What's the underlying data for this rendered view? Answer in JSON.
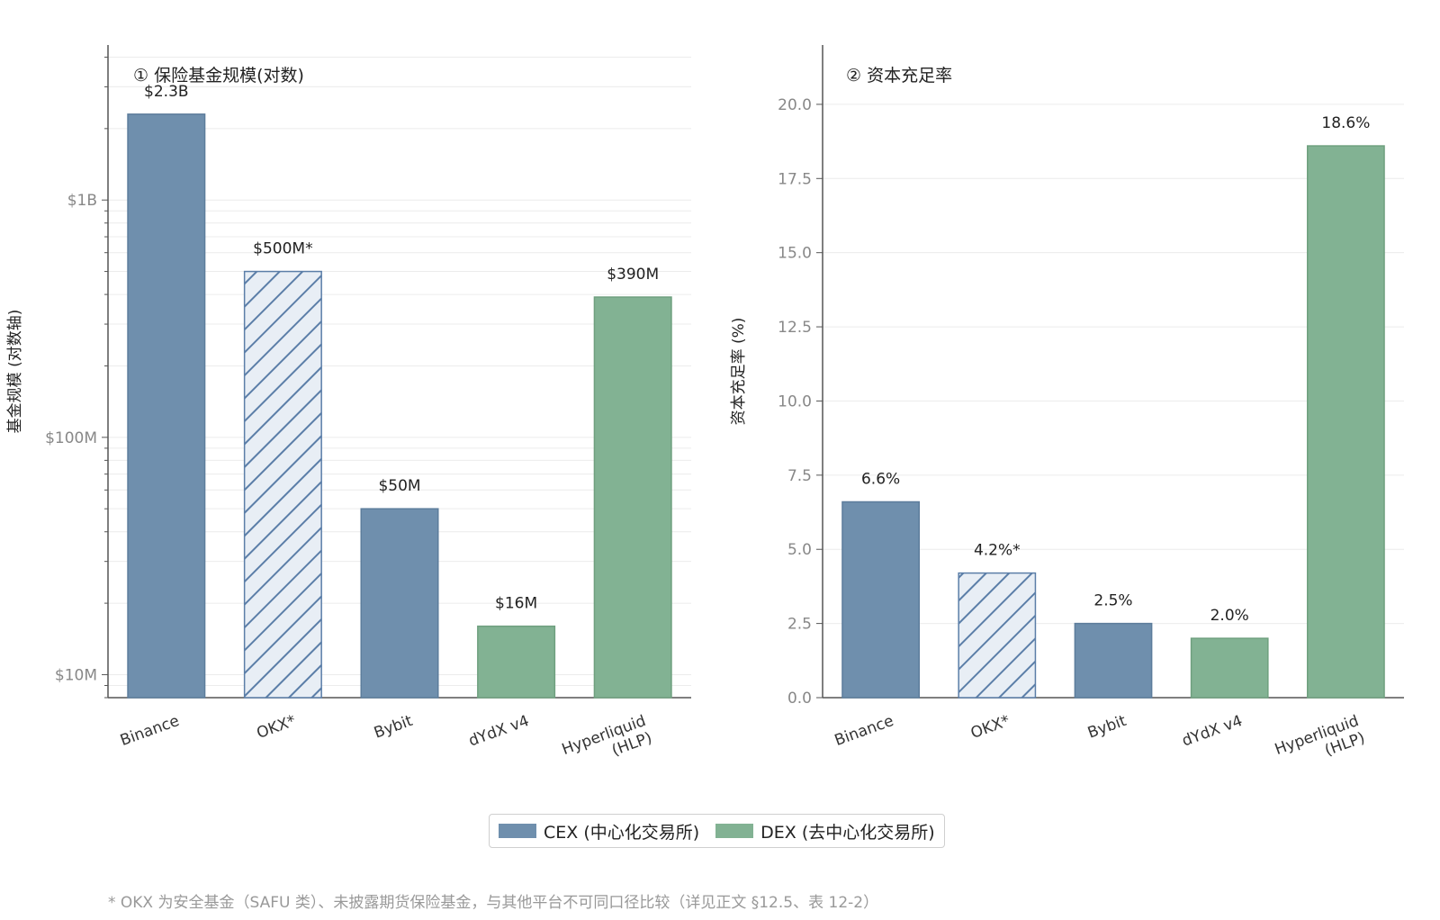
{
  "colors": {
    "cex": "#6f8fad",
    "dex": "#82b293",
    "okx_hatch": "#5b7ea8",
    "okx_fill": "#e8eef5",
    "grid": "#ececec",
    "axis": "#555555"
  },
  "chart_data": [
    {
      "type": "bar",
      "title": "① 保险基金规模(对数)",
      "xlabel": "",
      "ylabel": "基金规模 (对数轴)",
      "yscale": "log",
      "ylim": [
        8000000,
        4500000000
      ],
      "y_ticks": [
        {
          "value": 10000000,
          "label": "$10M"
        },
        {
          "value": 100000000,
          "label": "$100M"
        },
        {
          "value": 1000000000,
          "label": "$1B"
        }
      ],
      "categories": [
        "Binance",
        "OKX*",
        "Bybit",
        "dYdX v4",
        "Hyperliquid\n(HLP)"
      ],
      "values": [
        2300000000,
        500000000,
        50000000,
        16000000,
        390000000
      ],
      "value_labels": [
        "$2.3B",
        "$500M*",
        "$50M",
        "$16M",
        "$390M"
      ],
      "groups": [
        "CEX",
        "CEX-hatched",
        "CEX",
        "DEX",
        "DEX"
      ],
      "grid": true
    },
    {
      "type": "bar",
      "title": "② 资本充足率",
      "xlabel": "",
      "ylabel": "资本充足率 (%)",
      "yscale": "linear",
      "ylim": [
        0,
        22
      ],
      "y_ticks": [
        {
          "value": 0,
          "label": "0.0"
        },
        {
          "value": 2.5,
          "label": "2.5"
        },
        {
          "value": 5,
          "label": "5.0"
        },
        {
          "value": 7.5,
          "label": "7.5"
        },
        {
          "value": 10,
          "label": "10.0"
        },
        {
          "value": 12.5,
          "label": "12.5"
        },
        {
          "value": 15,
          "label": "15.0"
        },
        {
          "value": 17.5,
          "label": "17.5"
        },
        {
          "value": 20,
          "label": "20.0"
        }
      ],
      "categories": [
        "Binance",
        "OKX*",
        "Bybit",
        "dYdX v4",
        "Hyperliquid\n(HLP)"
      ],
      "values": [
        6.6,
        4.2,
        2.5,
        2.0,
        18.6
      ],
      "value_labels": [
        "6.6%",
        "4.2%*",
        "2.5%",
        "2.0%",
        "18.6%"
      ],
      "groups": [
        "CEX",
        "CEX-hatched",
        "CEX",
        "DEX",
        "DEX"
      ],
      "grid": true
    }
  ],
  "legend": {
    "placement": "bottom-center",
    "items": [
      {
        "label": "CEX (中心化交易所)",
        "color": "#6f8fad"
      },
      {
        "label": "DEX (去中心化交易所)",
        "color": "#82b293"
      }
    ]
  },
  "footnote": "* OKX 为安全基金（SAFU 类）、未披露期货保险基金，与其他平台不可同口径比较（详见正文 §12.5、表 12-2）"
}
